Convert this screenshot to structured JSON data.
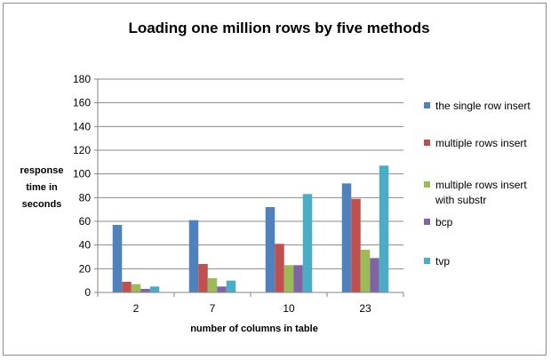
{
  "chart_data": {
    "type": "bar",
    "title": "Loading one million rows by five methods",
    "xlabel": "number of columns in table",
    "ylabel_lines": [
      "response",
      "time in",
      "seconds"
    ],
    "categories": [
      "2",
      "7",
      "10",
      "23"
    ],
    "ylim": [
      0,
      180
    ],
    "yticks": [
      0,
      20,
      40,
      60,
      80,
      100,
      120,
      140,
      160,
      180
    ],
    "grid": true,
    "legend_position": "right",
    "series": [
      {
        "name_lines": [
          "the single row insert"
        ],
        "color": "#4F81BD",
        "values": [
          57,
          61,
          72,
          92
        ]
      },
      {
        "name_lines": [
          "multiple rows insert"
        ],
        "color": "#C0504D",
        "values": [
          9,
          24,
          41,
          79
        ]
      },
      {
        "name_lines": [
          "multiple rows  insert",
          "with substr"
        ],
        "color": "#9BBB59",
        "values": [
          7,
          12,
          23,
          36
        ]
      },
      {
        "name_lines": [
          "bcp"
        ],
        "color": "#8064A2",
        "values": [
          3,
          5,
          23,
          29
        ]
      },
      {
        "name_lines": [
          "tvp"
        ],
        "color": "#4BACC6",
        "values": [
          5,
          10,
          83,
          107
        ]
      }
    ]
  }
}
